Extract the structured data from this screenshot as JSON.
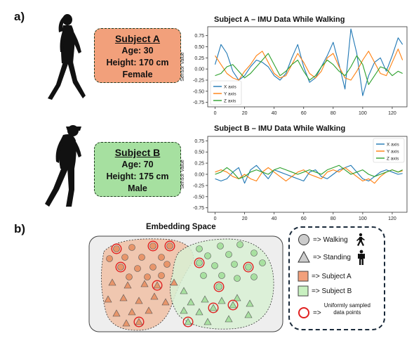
{
  "panel_a_label": "a)",
  "panel_b_label": "b)",
  "subjects": [
    {
      "name": "Subject A",
      "age": "Age: 30",
      "height": "Height: 170 cm",
      "sex": "Female",
      "color": "#f2a07b"
    },
    {
      "name": "Subject B",
      "age": "Age: 70",
      "height": "Height: 175 cm",
      "sex": "Male",
      "color": "#a6e0a0"
    }
  ],
  "chart_data": [
    {
      "type": "line",
      "title": "Subject A – IMU Data While Walking",
      "xlabel": "",
      "ylabel": "Sensor Value",
      "xlim": [
        -5,
        130
      ],
      "ylim": [
        -0.85,
        0.95
      ],
      "xticks": [
        0,
        20,
        40,
        60,
        80,
        100,
        120
      ],
      "yticks": [
        -0.75,
        -0.5,
        -0.25,
        0.0,
        0.25,
        0.5,
        0.75
      ],
      "ytick_labels": [
        "-0.75",
        "-0.50",
        "-0.25",
        "0.00",
        "0.25",
        "0.50",
        "0.75"
      ],
      "legend": "bottom-left",
      "series": [
        {
          "name": "X axis",
          "color": "#1f77b4",
          "x": [
            0,
            4,
            8,
            12,
            16,
            20,
            24,
            28,
            32,
            36,
            40,
            44,
            48,
            52,
            56,
            60,
            64,
            68,
            72,
            76,
            80,
            84,
            88,
            92,
            96,
            100,
            104,
            108,
            112,
            116,
            120,
            124,
            127
          ],
          "values": [
            0.1,
            0.55,
            0.35,
            -0.05,
            -0.25,
            -0.15,
            0.05,
            0.2,
            0.15,
            0.05,
            -0.15,
            -0.25,
            -0.1,
            0.25,
            0.55,
            0.05,
            -0.3,
            -0.2,
            0.05,
            0.3,
            0.6,
            0.1,
            -0.45,
            0.9,
            0.35,
            -0.6,
            -0.15,
            0.15,
            0.25,
            -0.05,
            0.3,
            0.7,
            0.55
          ]
        },
        {
          "name": "Y axis",
          "color": "#ff7f0e",
          "x": [
            0,
            4,
            8,
            12,
            16,
            20,
            24,
            28,
            32,
            36,
            40,
            44,
            48,
            52,
            56,
            60,
            64,
            68,
            72,
            76,
            80,
            84,
            88,
            92,
            96,
            100,
            104,
            108,
            112,
            116,
            120,
            124,
            127
          ],
          "values": [
            0.3,
            0.1,
            -0.1,
            -0.2,
            -0.25,
            -0.05,
            0.1,
            0.3,
            0.4,
            0.15,
            -0.1,
            -0.2,
            -0.15,
            0.1,
            0.35,
            0.15,
            -0.1,
            -0.2,
            -0.05,
            0.25,
            0.35,
            0.05,
            -0.2,
            -0.25,
            -0.05,
            0.2,
            0.4,
            0.15,
            -0.1,
            -0.15,
            0.15,
            0.45,
            0.2
          ]
        },
        {
          "name": "Z axis",
          "color": "#2ca02c",
          "x": [
            0,
            4,
            8,
            12,
            16,
            20,
            24,
            28,
            32,
            36,
            40,
            44,
            48,
            52,
            56,
            60,
            64,
            68,
            72,
            76,
            80,
            84,
            88,
            92,
            96,
            100,
            104,
            108,
            112,
            116,
            120,
            124,
            127
          ],
          "values": [
            -0.15,
            -0.1,
            0.05,
            0.1,
            -0.05,
            -0.2,
            -0.1,
            0.05,
            0.2,
            0.35,
            0.1,
            -0.15,
            -0.05,
            0.1,
            0.2,
            -0.05,
            -0.25,
            -0.15,
            0.05,
            0.2,
            0.1,
            -0.05,
            -0.15,
            0.05,
            0.3,
            0.1,
            -0.35,
            -0.15,
            0.05,
            0.0,
            -0.15,
            -0.05,
            -0.1
          ]
        }
      ]
    },
    {
      "type": "line",
      "title": "Subject B – IMU Data While Walking",
      "xlabel": "",
      "ylabel": "Sensor Value",
      "xlim": [
        -5,
        130
      ],
      "ylim": [
        -0.85,
        0.85
      ],
      "xticks": [
        0,
        20,
        40,
        60,
        80,
        100,
        120
      ],
      "yticks": [
        -0.75,
        -0.5,
        -0.25,
        0.0,
        0.25,
        0.5,
        0.75
      ],
      "ytick_labels": [
        "-0.75",
        "-0.50",
        "-0.25",
        "0.00",
        "0.25",
        "0.50",
        "0.75"
      ],
      "legend": "top-right",
      "series": [
        {
          "name": "X axis",
          "color": "#1f77b4",
          "x": [
            0,
            4,
            8,
            12,
            16,
            20,
            24,
            28,
            32,
            36,
            40,
            44,
            48,
            52,
            56,
            60,
            64,
            68,
            72,
            76,
            80,
            84,
            88,
            92,
            96,
            100,
            104,
            108,
            112,
            116,
            120,
            124,
            127
          ],
          "values": [
            -0.1,
            -0.15,
            -0.1,
            0.05,
            0.15,
            -0.2,
            0.1,
            0.2,
            0.05,
            -0.1,
            0.1,
            0.05,
            0.0,
            -0.05,
            -0.1,
            -0.15,
            0.05,
            0.1,
            -0.05,
            -0.1,
            0.0,
            0.1,
            0.15,
            0.2,
            0.05,
            -0.1,
            -0.15,
            -0.05,
            0.05,
            0.1,
            0.05,
            0.0,
            0.02
          ]
        },
        {
          "name": "Y axis",
          "color": "#ff7f0e",
          "x": [
            0,
            4,
            8,
            12,
            16,
            20,
            24,
            28,
            32,
            36,
            40,
            44,
            48,
            52,
            56,
            60,
            64,
            68,
            72,
            76,
            80,
            84,
            88,
            92,
            96,
            100,
            104,
            108,
            112,
            116,
            120,
            124,
            127
          ],
          "values": [
            0.05,
            0.1,
            0.05,
            -0.05,
            -0.1,
            0.0,
            -0.1,
            -0.15,
            0.05,
            0.15,
            0.05,
            -0.05,
            -0.15,
            -0.05,
            0.05,
            0.1,
            0.0,
            -0.05,
            -0.1,
            0.05,
            0.1,
            0.05,
            0.15,
            0.05,
            -0.05,
            -0.15,
            -0.1,
            -0.2,
            -0.05,
            0.05,
            0.1,
            0.05,
            0.08
          ]
        },
        {
          "name": "Z axis",
          "color": "#2ca02c",
          "x": [
            0,
            4,
            8,
            12,
            16,
            20,
            24,
            28,
            32,
            36,
            40,
            44,
            48,
            52,
            56,
            60,
            64,
            68,
            72,
            76,
            80,
            84,
            88,
            92,
            96,
            100,
            104,
            108,
            112,
            116,
            120,
            124,
            127
          ],
          "values": [
            0.0,
            0.05,
            0.15,
            0.05,
            -0.1,
            -0.05,
            0.05,
            0.1,
            0.05,
            0.0,
            0.1,
            0.15,
            0.1,
            0.05,
            0.0,
            0.05,
            0.1,
            0.05,
            0.0,
            0.1,
            0.15,
            0.2,
            0.1,
            0.0,
            0.05,
            0.1,
            0.0,
            -0.05,
            0.0,
            0.05,
            0.1,
            0.05,
            0.1
          ]
        }
      ]
    }
  ],
  "embedding": {
    "title": "Embedding Space",
    "legend": {
      "walking": "=> Walking",
      "standing": "=> Standing",
      "subject_a": "=> Subject A",
      "subject_b": "=> Subject B",
      "sampled_arrow": "=>",
      "sampled_line1": "Uniformly sampled",
      "sampled_line2": "data points"
    },
    "colors": {
      "region_a": "#f0c2a8",
      "region_b": "#d8f0d4",
      "point_a": "#e8956a",
      "point_b": "#a8e0a0",
      "sampled_ring": "#e02020"
    }
  }
}
